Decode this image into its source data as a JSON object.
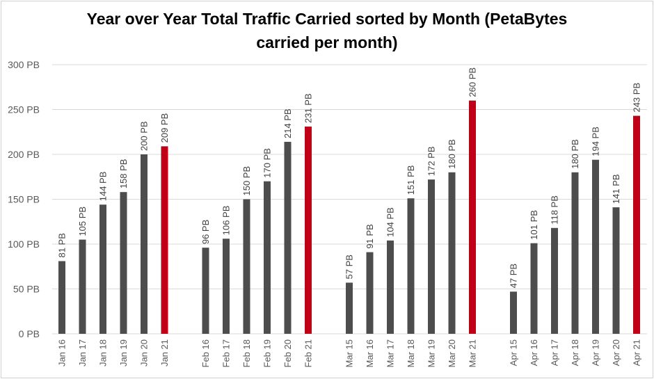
{
  "chart_data": {
    "type": "bar",
    "title": "Year over Year Total Traffic Carried sorted by Month (PetaBytes carried per month)",
    "xlabel": "",
    "ylabel": "",
    "ylim": [
      0,
      300
    ],
    "yticks": [
      "0 PB",
      "50 PB",
      "100 PB",
      "150 PB",
      "200 PB",
      "250 PB",
      "300 PB"
    ],
    "ytick_values": [
      0,
      50,
      100,
      150,
      200,
      250,
      300
    ],
    "grid": true,
    "legend": "none",
    "unit_suffix": " PB",
    "colors": {
      "default": "#4d4d4d",
      "highlight": "#c00016",
      "grid": "#d9d9d9"
    },
    "groups": [
      {
        "month": "Jan",
        "categories": [
          "Jan 16",
          "Jan 17",
          "Jan 18",
          "Jan 19",
          "Jan 20",
          "Jan 21"
        ],
        "values": [
          81,
          105,
          144,
          158,
          200,
          209
        ],
        "labels": [
          "81 PB",
          "105 PB",
          "144 PB",
          "158 PB",
          "200 PB",
          "209 PB"
        ]
      },
      {
        "month": "Feb",
        "categories": [
          "Feb 16",
          "Feb 17",
          "Feb 18",
          "Feb 19",
          "Feb 20",
          "Feb 21"
        ],
        "values": [
          96,
          106,
          150,
          170,
          214,
          231
        ],
        "labels": [
          "96 PB",
          "106 PB",
          "150 PB",
          "170 PB",
          "214 PB",
          "231 PB"
        ]
      },
      {
        "month": "Mar",
        "categories": [
          "Mar 15",
          "Mar 16",
          "Mar 17",
          "Mar 18",
          "Mar 19",
          "Mar 20",
          "Mar 21"
        ],
        "values": [
          57,
          91,
          104,
          151,
          172,
          180,
          260
        ],
        "labels": [
          "57 PB",
          "91 PB",
          "104 PB",
          "151 PB",
          "172 PB",
          "180 PB",
          "260 PB"
        ]
      },
      {
        "month": "Apr",
        "categories": [
          "Apr 15",
          "Apr 16",
          "Apr 17",
          "Apr 18",
          "Apr 19",
          "Apr 20",
          "Apr 21"
        ],
        "values": [
          47,
          101,
          118,
          180,
          194,
          141,
          243
        ],
        "labels": [
          "47 PB",
          "101 PB",
          "118 PB",
          "180 PB",
          "194 PB",
          "141 PB",
          "243 PB"
        ]
      }
    ],
    "highlight_last_in_group": true
  }
}
